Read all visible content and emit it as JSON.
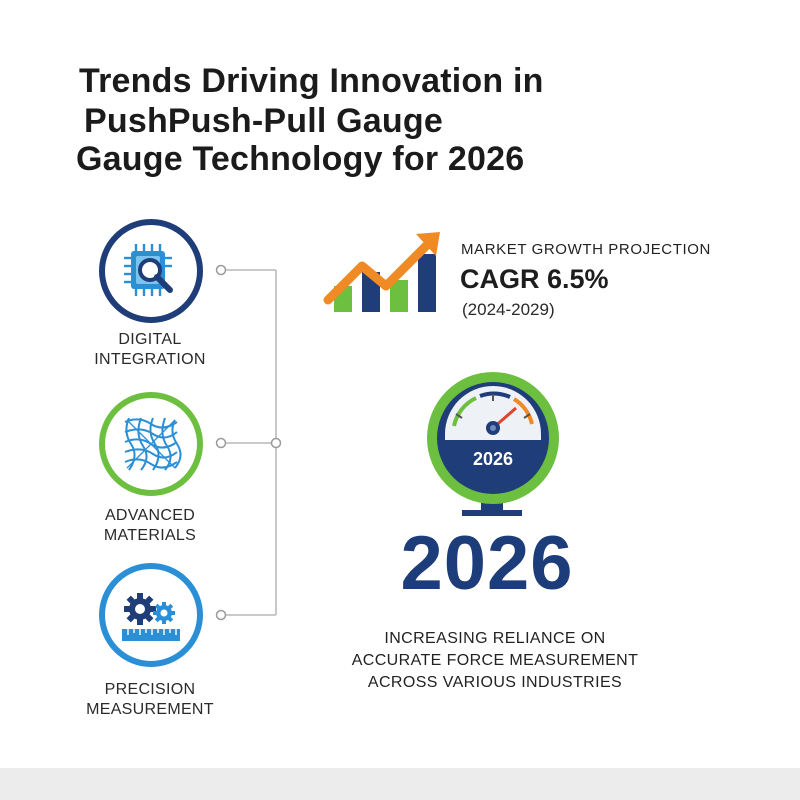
{
  "title": {
    "line1": "Trends Driving Innovation in",
    "line2": "PushPush-Pull Gauge",
    "line3": "Gauge Technology for 2026"
  },
  "trends": [
    {
      "label_line1": "DIGITAL",
      "label_line2": "INTEGRATION",
      "icon": "chip-magnifier-icon",
      "ring_color": "#1f3d78"
    },
    {
      "label_line1": "ADVANCED",
      "label_line2": "MATERIALS",
      "icon": "fiber-mesh-icon",
      "ring_color": "#6cbf3f"
    },
    {
      "label_line1": "PRECISION",
      "label_line2": "MEASUREMENT",
      "icon": "gears-ruler-icon",
      "ring_color": "#2b8fd6"
    }
  ],
  "market": {
    "heading": "MARKET GROWTH PROJECTION",
    "value": "CAGR 6.5%",
    "range": "(2024-2029)",
    "icon": "growth-chart-icon"
  },
  "gauge": {
    "year_label": "2026",
    "icon": "gauge-icon"
  },
  "big_year": "2026",
  "statement": {
    "line1": "INCREASING RELIANCE ON",
    "line2": "ACCURATE FORCE MEASUREMENT",
    "line3": "ACROSS VARIOUS INDUSTRIES"
  },
  "colors": {
    "navy": "#1f3d78",
    "green": "#6cbf3f",
    "blue": "#2b8fd6",
    "orange": "#f08a24"
  }
}
